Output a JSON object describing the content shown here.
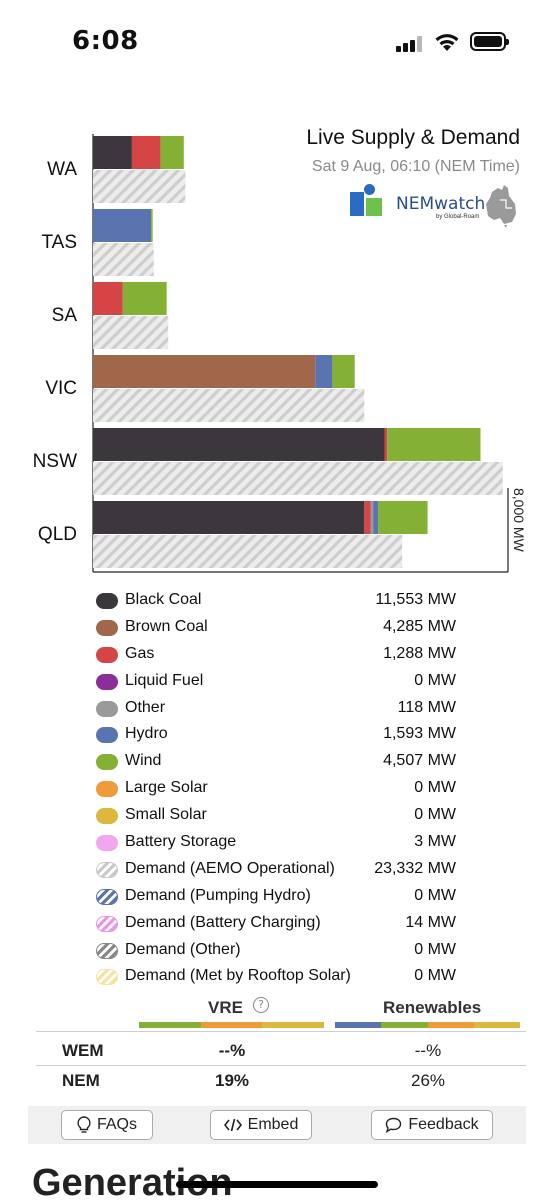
{
  "status_bar": {
    "time": "6:08"
  },
  "header": {
    "title": "Live Supply & Demand",
    "subtitle": "Sat 9 Aug, 06:10 (NEM Time)",
    "logo_text": "NEMwatch",
    "logo_subtext": "by Global-Roam"
  },
  "chart_data": {
    "type": "bar",
    "orientation": "horizontal",
    "categories": [
      "WA",
      "TAS",
      "SA",
      "VIC",
      "NSW",
      "QLD"
    ],
    "x_unit": "MW",
    "scale_label": "8,000 MW",
    "xlim": [
      0,
      8000
    ],
    "supply": [
      {
        "region": "WA",
        "segments": [
          {
            "fuel": "Black Coal",
            "mw": 750
          },
          {
            "fuel": "Gas",
            "mw": 550
          },
          {
            "fuel": "Wind",
            "mw": 450
          }
        ]
      },
      {
        "region": "TAS",
        "segments": [
          {
            "fuel": "Hydro",
            "mw": 1120
          },
          {
            "fuel": "Wind",
            "mw": 30
          }
        ]
      },
      {
        "region": "SA",
        "segments": [
          {
            "fuel": "Gas",
            "mw": 570
          },
          {
            "fuel": "Wind",
            "mw": 850
          }
        ]
      },
      {
        "region": "VIC",
        "segments": [
          {
            "fuel": "Brown Coal",
            "mw": 4285
          },
          {
            "fuel": "Hydro",
            "mw": 330
          },
          {
            "fuel": "Wind",
            "mw": 430
          }
        ]
      },
      {
        "region": "NSW",
        "segments": [
          {
            "fuel": "Black Coal",
            "mw": 5620
          },
          {
            "fuel": "Gas",
            "mw": 50
          },
          {
            "fuel": "Wind",
            "mw": 1800
          }
        ]
      },
      {
        "region": "QLD",
        "segments": [
          {
            "fuel": "Black Coal",
            "mw": 5230
          },
          {
            "fuel": "Gas",
            "mw": 120
          },
          {
            "fuel": "Other",
            "mw": 50
          },
          {
            "fuel": "Hydro",
            "mw": 100
          },
          {
            "fuel": "Wind",
            "mw": 950
          }
        ]
      }
    ],
    "demand": [
      {
        "region": "WA",
        "mw": 1780
      },
      {
        "region": "TAS",
        "mw": 1170
      },
      {
        "region": "SA",
        "mw": 1450
      },
      {
        "region": "VIC",
        "mw": 5230
      },
      {
        "region": "NSW",
        "mw": 7900
      },
      {
        "region": "QLD",
        "mw": 5960
      }
    ]
  },
  "colors": {
    "Black Coal": "#3b373c",
    "Brown Coal": "#a0674a",
    "Gas": "#d64545",
    "Liquid Fuel": "#8a2f98",
    "Other": "#9a9a9a",
    "Hydro": "#5a74b0",
    "Wind": "#84b135",
    "Large Solar": "#f09a38",
    "Small Solar": "#dcb83c",
    "Battery Storage": "#f2a6ee",
    "Demand (AEMO Operational)": "#c9c9c9",
    "Demand (Pumping Hydro)": "#5a74b0",
    "Demand (Battery Charging)": "#e896e6",
    "Demand (Other)": "#888888",
    "Demand (Met by Rooftop Solar)": "#f6e3a0"
  },
  "legend": [
    {
      "label": "Black Coal",
      "value": "11,553 MW",
      "pattern": "solid"
    },
    {
      "label": "Brown Coal",
      "value": "4,285 MW",
      "pattern": "solid"
    },
    {
      "label": "Gas",
      "value": "1,288 MW",
      "pattern": "solid"
    },
    {
      "label": "Liquid Fuel",
      "value": "0 MW",
      "pattern": "solid"
    },
    {
      "label": "Other",
      "value": "118 MW",
      "pattern": "solid"
    },
    {
      "label": "Hydro",
      "value": "1,593 MW",
      "pattern": "solid"
    },
    {
      "label": "Wind",
      "value": "4,507 MW",
      "pattern": "solid"
    },
    {
      "label": "Large Solar",
      "value": "0 MW",
      "pattern": "solid"
    },
    {
      "label": "Small Solar",
      "value": "0 MW",
      "pattern": "solid"
    },
    {
      "label": "Battery Storage",
      "value": "3 MW",
      "pattern": "solid"
    },
    {
      "label": "Demand (AEMO Operational)",
      "value": "23,332 MW",
      "pattern": "hatch"
    },
    {
      "label": "Demand (Pumping Hydro)",
      "value": "0 MW",
      "pattern": "hatch"
    },
    {
      "label": "Demand (Battery Charging)",
      "value": "14 MW",
      "pattern": "hatch"
    },
    {
      "label": "Demand (Other)",
      "value": "0 MW",
      "pattern": "hatch"
    },
    {
      "label": "Demand (Met by Rooftop Solar)",
      "value": "0 MW",
      "pattern": "hatch"
    }
  ],
  "share_table": {
    "vre_label": "VRE",
    "renewables_label": "Renewables",
    "vre_strip": [
      "#84b135",
      "#f09a38",
      "#dcb83c"
    ],
    "renewables_strip": [
      "#5a74b0",
      "#84b135",
      "#f09a38",
      "#dcb83c"
    ],
    "rows": [
      {
        "label": "WEM",
        "vre": "--%",
        "renewables": "--%"
      },
      {
        "label": "NEM",
        "vre": "19%",
        "renewables": "26%"
      }
    ]
  },
  "buttons": {
    "faqs": "FAQs",
    "embed": "Embed",
    "feedback": "Feedback"
  },
  "section": {
    "title": "Generation"
  }
}
